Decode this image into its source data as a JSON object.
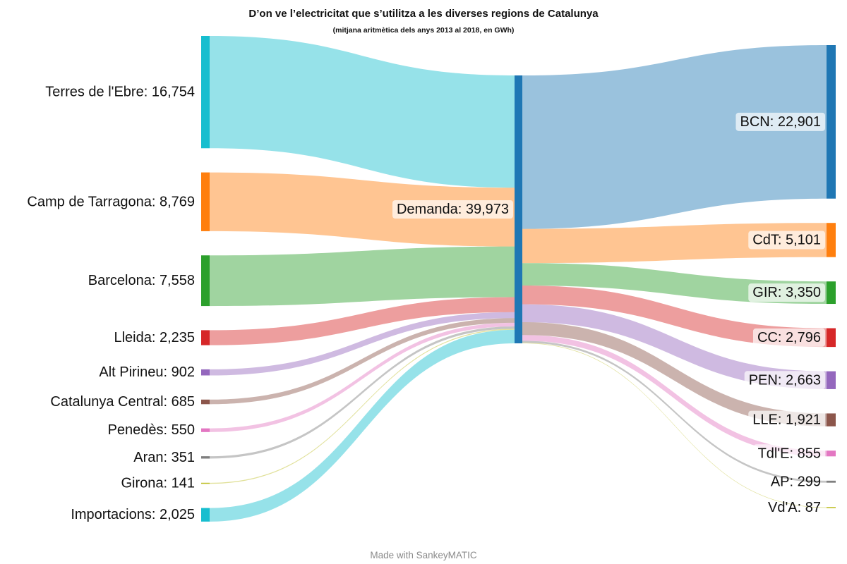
{
  "chart_data": {
    "type": "sankey",
    "title": "D’on ve l’electricitat que s’utilitza a les diverses regions de Catalunya",
    "subtitle": "(mitjana aritmètica dels anys 2013 al 2018, en GWh)",
    "credit": "Made with SankeyMATIC",
    "sources": [
      {
        "name": "Terres de l'Ebre",
        "label": "Terres de l'Ebre: 16,754",
        "value": 16754,
        "color": "#17becf"
      },
      {
        "name": "Camp de Tarragona",
        "label": "Camp de Tarragona: 8,769",
        "value": 8769,
        "color": "#ff7f0e"
      },
      {
        "name": "Barcelona",
        "label": "Barcelona: 7,558",
        "value": 7558,
        "color": "#2ca02c"
      },
      {
        "name": "Lleida",
        "label": "Lleida: 2,235",
        "value": 2235,
        "color": "#d62728"
      },
      {
        "name": "Alt Pirineu",
        "label": "Alt Pirineu: 902",
        "value": 902,
        "color": "#9467bd"
      },
      {
        "name": "Catalunya Central",
        "label": "Catalunya Central: 685",
        "value": 685,
        "color": "#8c564b"
      },
      {
        "name": "Penedès",
        "label": "Penedès: 550",
        "value": 550,
        "color": "#e377c2"
      },
      {
        "name": "Aran",
        "label": "Aran: 351",
        "value": 351,
        "color": "#7f7f7f"
      },
      {
        "name": "Girona",
        "label": "Girona: 141",
        "value": 141,
        "color": "#bcbd22"
      },
      {
        "name": "Importacions",
        "label": "Importacions: 2,025",
        "value": 2025,
        "color": "#17becf"
      }
    ],
    "middle": {
      "name": "Demanda",
      "label": "Demanda: 39,973",
      "value": 39973,
      "color": "#1f77b4"
    },
    "targets": [
      {
        "name": "BCN",
        "label": "BCN: 22,901",
        "value": 22901,
        "color": "#1f77b4"
      },
      {
        "name": "CdT",
        "label": "CdT: 5,101",
        "value": 5101,
        "color": "#ff7f0e"
      },
      {
        "name": "GIR",
        "label": "GIR: 3,350",
        "value": 3350,
        "color": "#2ca02c"
      },
      {
        "name": "CC",
        "label": "CC: 2,796",
        "value": 2796,
        "color": "#d62728"
      },
      {
        "name": "PEN",
        "label": "PEN: 2,663",
        "value": 2663,
        "color": "#9467bd"
      },
      {
        "name": "LLE",
        "label": "LLE: 1,921",
        "value": 1921,
        "color": "#8c564b"
      },
      {
        "name": "TdlE",
        "label": "Tdl'E: 855",
        "value": 855,
        "color": "#e377c2"
      },
      {
        "name": "AP",
        "label": "AP: 299",
        "value": 299,
        "color": "#7f7f7f"
      },
      {
        "name": "VdA",
        "label": "Vd'A: 87",
        "value": 87,
        "color": "#bcbd22"
      }
    ]
  }
}
